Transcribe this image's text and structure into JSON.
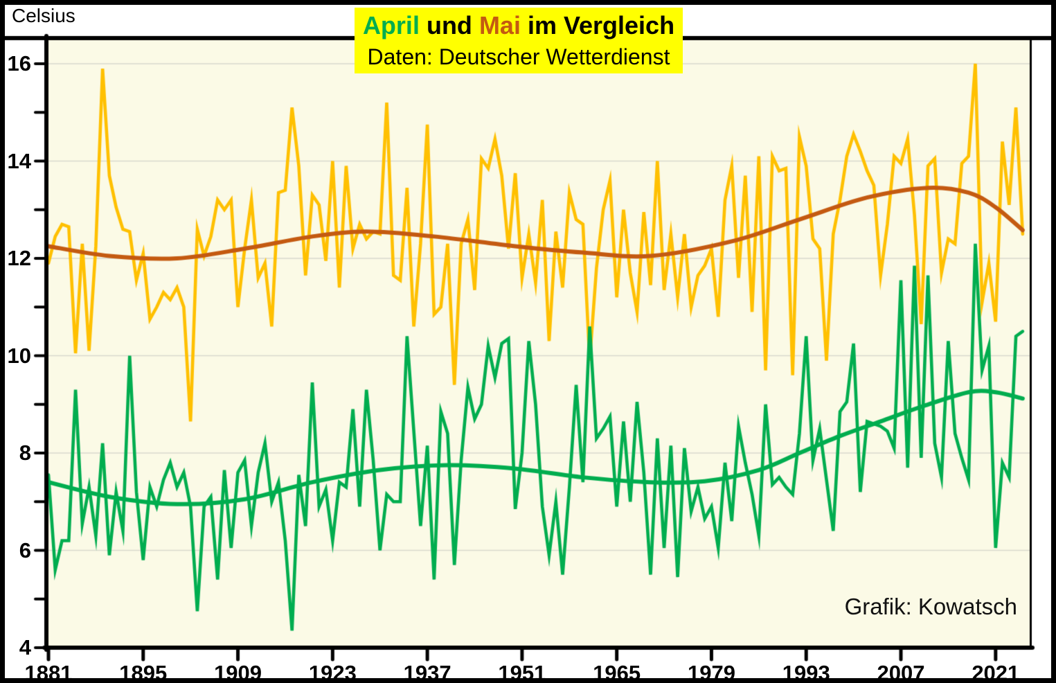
{
  "y_axis_title": "Celsius",
  "credit": "Grafik: Kowatsch",
  "title": {
    "part_april": "April",
    "part_und": " und ",
    "part_mai": "Mai",
    "part_rest": " im Vergleich",
    "subtitle": "Daten: Deutscher Wetterdienst"
  },
  "colors": {
    "title_bg": "#FFFF00",
    "april_accent": "#00AD4F",
    "mai_accent": "#C45A11",
    "may_line": "#FFC000",
    "april_line": "#00AD4F",
    "may_trend": "#C45A11",
    "april_trend": "#00AD4F",
    "plot_bg": "#FBFAE6",
    "grid": "#D9D9CE",
    "axis": "#000000"
  },
  "chart_data": {
    "type": "line",
    "title": "April und Mai im Vergleich",
    "subtitle": "Daten: Deutscher Wetterdienst",
    "ylabel": "Celsius",
    "unit": "Celsius",
    "x_range": [
      1881,
      2025
    ],
    "ylim": [
      4,
      16.55
    ],
    "grid": "horizontal-major-only",
    "legend": "none",
    "xticks_major": [
      1881,
      1895,
      1909,
      1923,
      1937,
      1951,
      1965,
      1979,
      1993,
      2007,
      2021
    ],
    "yticks_major": [
      4,
      6,
      8,
      10,
      12,
      14,
      16
    ],
    "yticks_minor": [
      5,
      7,
      9,
      11,
      13,
      15
    ],
    "series": [
      {
        "name": "Mai",
        "kind": "data",
        "color": "#FFC000",
        "start_year": 1881,
        "values": [
          11.9,
          12.45,
          12.7,
          12.65,
          10.05,
          12.3,
          10.1,
          12.25,
          15.9,
          13.7,
          13.05,
          12.6,
          12.55,
          11.55,
          12.1,
          10.75,
          11.0,
          11.3,
          11.15,
          11.4,
          11.0,
          8.65,
          12.6,
          12.05,
          12.45,
          13.2,
          13.0,
          13.2,
          11.0,
          12.2,
          13.2,
          11.6,
          11.9,
          10.6,
          13.35,
          13.4,
          15.1,
          13.9,
          11.65,
          13.3,
          13.1,
          11.95,
          14.0,
          11.4,
          13.9,
          12.2,
          12.7,
          12.4,
          12.55,
          12.5,
          15.2,
          11.65,
          11.55,
          13.45,
          10.6,
          12.3,
          14.75,
          10.85,
          11.0,
          12.3,
          9.4,
          12.3,
          12.8,
          11.35,
          14.05,
          13.85,
          14.45,
          13.7,
          12.2,
          13.75,
          11.6,
          12.5,
          11.5,
          13.2,
          10.3,
          12.55,
          11.4,
          13.35,
          12.8,
          12.7,
          9.9,
          11.8,
          13.0,
          13.6,
          11.2,
          13.0,
          11.7,
          10.9,
          12.95,
          11.45,
          14.0,
          11.35,
          12.5,
          11.2,
          12.5,
          11.0,
          11.65,
          11.85,
          12.2,
          10.8,
          13.2,
          13.9,
          11.6,
          13.7,
          10.9,
          14.1,
          9.7,
          14.1,
          13.8,
          13.85,
          9.6,
          14.5,
          13.9,
          12.4,
          12.2,
          9.9,
          12.5,
          13.2,
          14.1,
          14.55,
          14.2,
          13.8,
          13.5,
          11.65,
          12.7,
          14.1,
          13.95,
          14.45,
          12.9,
          10.65,
          13.9,
          14.05,
          11.7,
          12.4,
          12.3,
          13.95,
          14.1,
          16.0,
          11.1,
          11.9,
          10.7,
          14.4,
          13.1,
          15.1,
          12.5
        ]
      },
      {
        "name": "April",
        "kind": "data",
        "color": "#00AD4F",
        "start_year": 1881,
        "values": [
          7.55,
          5.6,
          6.2,
          6.2,
          9.3,
          6.55,
          7.3,
          6.3,
          8.2,
          5.9,
          7.2,
          6.4,
          10.0,
          7.2,
          5.8,
          7.3,
          6.9,
          7.45,
          7.8,
          7.3,
          7.6,
          6.9,
          4.75,
          6.9,
          7.1,
          5.4,
          7.65,
          6.05,
          7.6,
          7.85,
          6.5,
          7.6,
          8.2,
          7.0,
          7.4,
          6.2,
          4.35,
          7.55,
          6.5,
          9.45,
          6.9,
          7.25,
          6.2,
          7.4,
          7.3,
          8.9,
          6.9,
          9.3,
          7.85,
          6.0,
          7.15,
          7.0,
          7.0,
          10.4,
          8.45,
          6.5,
          8.15,
          5.4,
          8.85,
          8.4,
          5.7,
          7.85,
          9.35,
          8.7,
          9.0,
          10.2,
          9.55,
          10.25,
          10.35,
          6.85,
          8.0,
          10.3,
          9.0,
          6.9,
          5.9,
          7.0,
          5.5,
          7.3,
          9.4,
          7.4,
          10.6,
          8.3,
          8.5,
          8.75,
          6.9,
          8.65,
          7.0,
          9.05,
          7.6,
          5.5,
          8.3,
          6.05,
          8.15,
          5.45,
          8.1,
          6.8,
          7.3,
          6.65,
          6.9,
          6.05,
          7.8,
          6.6,
          8.55,
          7.8,
          7.15,
          6.3,
          9.0,
          7.35,
          7.5,
          7.3,
          7.15,
          8.4,
          10.4,
          7.85,
          8.5,
          7.45,
          6.4,
          8.85,
          9.05,
          10.25,
          7.2,
          8.65,
          8.6,
          8.55,
          8.45,
          8.1,
          11.55,
          7.7,
          11.85,
          7.9,
          11.65,
          8.2,
          7.5,
          10.3,
          8.4,
          7.9,
          7.45,
          12.3,
          9.7,
          10.2,
          6.05,
          7.8,
          7.5,
          10.4,
          10.5
        ]
      },
      {
        "name": "Mai Trend",
        "kind": "trend",
        "color": "#C45A11",
        "points": [
          [
            1881,
            12.25
          ],
          [
            1890,
            12.05
          ],
          [
            1900,
            12.0
          ],
          [
            1910,
            12.2
          ],
          [
            1920,
            12.45
          ],
          [
            1928,
            12.55
          ],
          [
            1938,
            12.45
          ],
          [
            1950,
            12.25
          ],
          [
            1960,
            12.12
          ],
          [
            1970,
            12.05
          ],
          [
            1982,
            12.35
          ],
          [
            1992,
            12.8
          ],
          [
            2002,
            13.25
          ],
          [
            2011,
            13.45
          ],
          [
            2017,
            13.35
          ],
          [
            2021,
            13.05
          ],
          [
            2025,
            12.58
          ]
        ]
      },
      {
        "name": "April Trend",
        "kind": "trend",
        "color": "#00AD4F",
        "points": [
          [
            1881,
            7.4
          ],
          [
            1890,
            7.1
          ],
          [
            1900,
            6.95
          ],
          [
            1910,
            7.05
          ],
          [
            1920,
            7.4
          ],
          [
            1930,
            7.65
          ],
          [
            1940,
            7.75
          ],
          [
            1950,
            7.68
          ],
          [
            1960,
            7.5
          ],
          [
            1970,
            7.4
          ],
          [
            1978,
            7.42
          ],
          [
            1986,
            7.65
          ],
          [
            1992,
            8.0
          ],
          [
            1998,
            8.35
          ],
          [
            2004,
            8.65
          ],
          [
            2010,
            8.95
          ],
          [
            2017,
            9.25
          ],
          [
            2021,
            9.25
          ],
          [
            2025,
            9.12
          ]
        ]
      }
    ]
  }
}
